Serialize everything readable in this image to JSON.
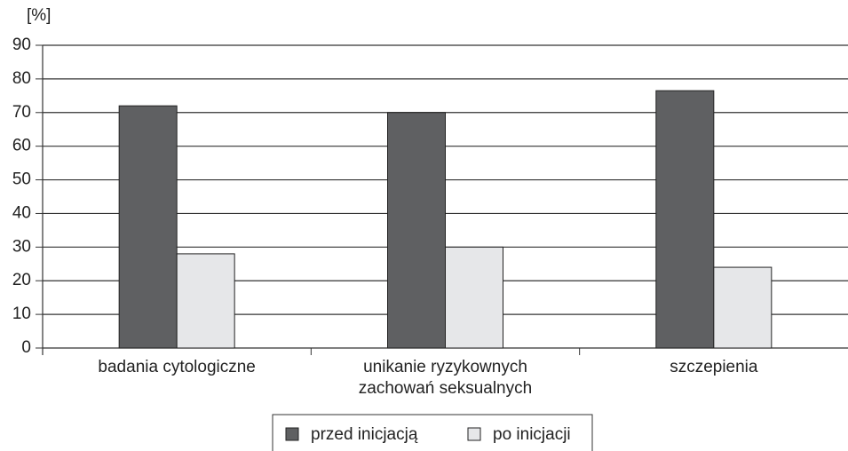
{
  "chart_data": {
    "type": "bar",
    "y_label": "[%]",
    "categories": [
      "badania cytologiczne",
      "unikanie ryzykownych\nzachowań seksualnych",
      "szczepienia"
    ],
    "series": [
      {
        "name": "przed inicjacją",
        "color": "#5f6062",
        "values": [
          72,
          70,
          76.5
        ]
      },
      {
        "name": "po inicjacji",
        "color": "#e6e7e9",
        "values": [
          28,
          30,
          24
        ]
      }
    ],
    "ylim": [
      0,
      90
    ],
    "yticks": [
      0,
      10,
      20,
      30,
      40,
      50,
      60,
      70,
      80,
      90
    ],
    "grid": true,
    "legend": "bottom"
  }
}
